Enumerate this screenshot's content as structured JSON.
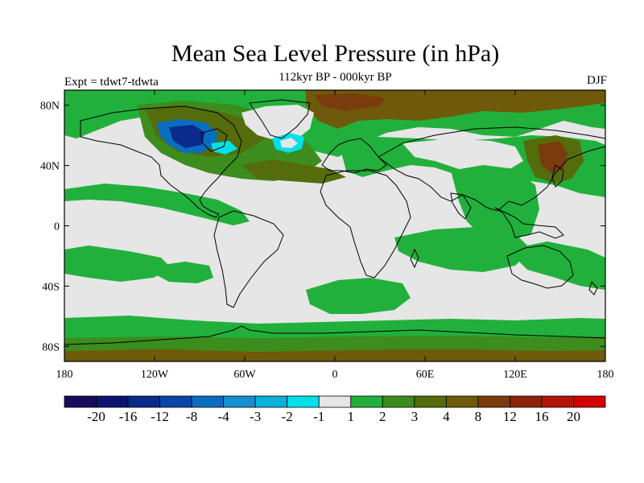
{
  "title": "Mean Sea Level Pressure (in hPa)",
  "subtitle": "112kyr BP - 000kyr BP",
  "experiment": "Expt = tdwt7-tdwta",
  "season": "DJF",
  "map": {
    "lon_range": [
      -180,
      180
    ],
    "lat_range": [
      -90,
      90
    ],
    "lon_ticks": [
      {
        "value": -180,
        "label": "180"
      },
      {
        "value": -120,
        "label": "120W"
      },
      {
        "value": -60,
        "label": "60W"
      },
      {
        "value": 0,
        "label": "0"
      },
      {
        "value": 60,
        "label": "60E"
      },
      {
        "value": 120,
        "label": "120E"
      },
      {
        "value": 180,
        "label": "180"
      }
    ],
    "lat_ticks": [
      {
        "value": 80,
        "label": "80N"
      },
      {
        "value": 40,
        "label": "40N"
      },
      {
        "value": 0,
        "label": "0"
      },
      {
        "value": -40,
        "label": "40S"
      },
      {
        "value": -80,
        "label": "80S"
      }
    ]
  },
  "colorbar": {
    "colors": [
      "#1a0a5c",
      "#0c1470",
      "#0a2a8c",
      "#0a46a8",
      "#0a6ec0",
      "#1490d0",
      "#0ab0d8",
      "#00e0e8",
      "#e6e6e6",
      "#22b03c",
      "#3c8c1e",
      "#546c0c",
      "#6e5a0a",
      "#7a3c0c",
      "#8c2208",
      "#b41408",
      "#d20000"
    ],
    "labels": [
      "-20",
      "-16",
      "-12",
      "-8",
      "-4",
      "-3",
      "-2",
      "-1",
      "1",
      "2",
      "3",
      "4",
      "8",
      "12",
      "16",
      "20"
    ]
  },
  "regions": [
    {
      "name": "na-low-outer",
      "level": 5,
      "lon": -100,
      "lat": 63,
      "rlon": 20,
      "rlat": 11
    },
    {
      "name": "na-low-mid",
      "level": 6,
      "lon": -100,
      "lat": 64,
      "rlon": 15,
      "rlat": 8
    },
    {
      "name": "na-low-core",
      "level": 2,
      "lon": -103,
      "lat": 64,
      "rlon": 10,
      "rlat": 5
    },
    {
      "name": "labrador-low",
      "level": 7,
      "lon": -78,
      "lat": 60,
      "rlon": 6,
      "rlat": 3
    },
    {
      "name": "greenland-low",
      "level": 7,
      "lon": -32,
      "lat": 57,
      "rlon": 9,
      "rlat": 5
    },
    {
      "name": "sth-hemisphere-band",
      "level": 9,
      "lon": 0,
      "lat": -74,
      "rlon": 185,
      "rlat": 7
    },
    {
      "name": "antarctic-brown",
      "level": 12,
      "lon": 0,
      "lat": -86,
      "rlon": 185,
      "rlat": 4
    },
    {
      "name": "siberia-brown",
      "level": 12,
      "lon": 150,
      "lat": 50,
      "rlon": 12,
      "rlat": 14
    },
    {
      "name": "arctic-brown",
      "level": 12,
      "lon": 20,
      "lat": 82,
      "rlon": 120,
      "rlat": 6
    }
  ]
}
